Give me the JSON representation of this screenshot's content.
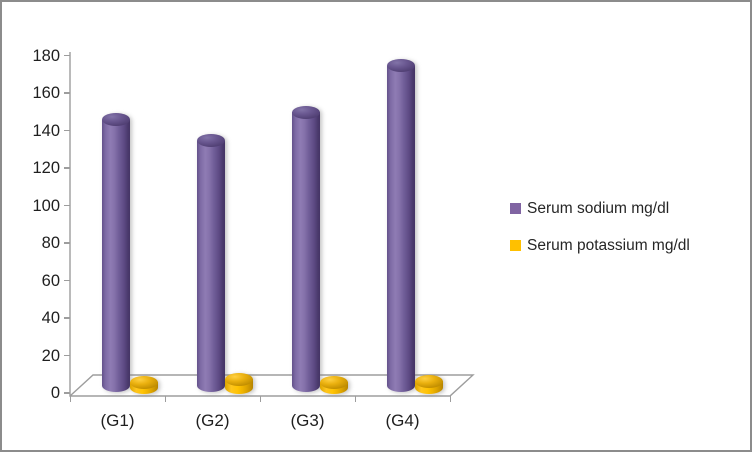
{
  "figure": {
    "background": "#FFFFFF",
    "border_color": "#8C8C8C"
  },
  "chart_data": {
    "type": "bar",
    "subtype": "3d-cylinder",
    "title": "",
    "xlabel": "",
    "ylabel": "",
    "categories": [
      "(G1)",
      "(G2)",
      "(G3)",
      "(G4)"
    ],
    "series": [
      {
        "name": "Serum sodium mg/dl",
        "color": "#8064A2",
        "values": [
          143,
          132,
          147,
          172
        ]
      },
      {
        "name": "Serum potassium mg/dl",
        "color": "#FFC000",
        "values": [
          4,
          5.5,
          4,
          4.5
        ]
      }
    ],
    "ylim": [
      0,
      180
    ],
    "ytick_step": 20,
    "yticks": [
      0,
      20,
      40,
      60,
      80,
      100,
      120,
      140,
      160,
      180
    ],
    "grid": false,
    "legend_position": "right",
    "axis_color": "#9D9D9D",
    "text_color": "#1F1F1F"
  }
}
